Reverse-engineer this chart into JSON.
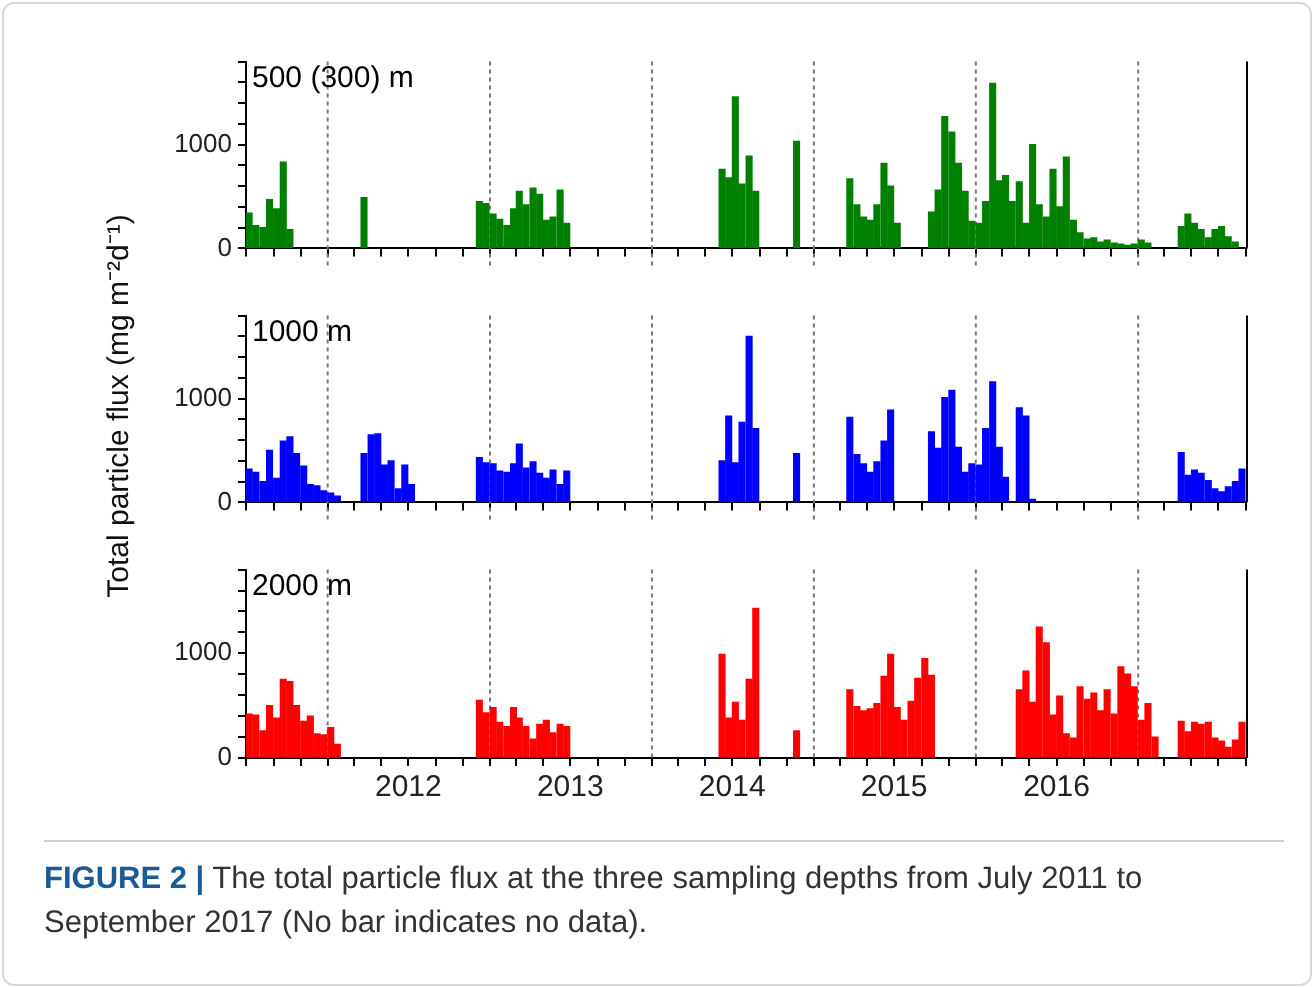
{
  "chart_data": [
    {
      "type": "bar",
      "color": "#008000",
      "legend": false,
      "tick_labels": "y",
      "annotations": [
        "500 (300) m"
      ],
      "x": [
        "2011-07-08",
        "2011-07-23",
        "2011-08-08",
        "2011-08-23",
        "2011-09-08",
        "2011-09-23",
        "2011-10-08",
        "2012-03-23",
        "2012-12-08",
        "2012-12-23",
        "2013-01-08",
        "2013-01-23",
        "2013-02-08",
        "2013-02-23",
        "2013-03-08",
        "2013-03-23",
        "2013-04-08",
        "2013-04-23",
        "2013-05-08",
        "2013-05-23",
        "2013-06-08",
        "2013-06-23",
        "2014-06-08",
        "2014-06-23",
        "2014-07-08",
        "2014-07-23",
        "2014-08-08",
        "2014-08-23",
        "2014-11-23",
        "2015-03-23",
        "2015-04-08",
        "2015-04-23",
        "2015-05-08",
        "2015-05-23",
        "2015-06-08",
        "2015-06-23",
        "2015-07-08",
        "2015-09-23",
        "2015-10-08",
        "2015-10-23",
        "2015-11-08",
        "2015-11-23",
        "2015-12-08",
        "2015-12-23",
        "2016-01-08",
        "2016-01-23",
        "2016-02-08",
        "2016-02-23",
        "2016-03-08",
        "2016-03-23",
        "2016-04-08",
        "2016-04-23",
        "2016-05-08",
        "2016-05-23",
        "2016-06-08",
        "2016-06-23",
        "2016-07-08",
        "2016-07-23",
        "2016-08-08",
        "2016-08-23",
        "2016-09-08",
        "2016-09-23",
        "2016-10-08",
        "2016-10-23",
        "2016-11-08",
        "2016-11-23",
        "2016-12-08",
        "2016-12-23",
        "2017-01-08",
        "2017-01-23",
        "2017-04-08",
        "2017-04-23",
        "2017-05-08",
        "2017-05-23",
        "2017-06-08",
        "2017-06-23",
        "2017-07-08",
        "2017-07-23",
        "2017-08-08"
      ],
      "values": [
        340,
        220,
        200,
        470,
        380,
        830,
        180,
        490,
        450,
        430,
        330,
        280,
        220,
        380,
        550,
        420,
        580,
        520,
        270,
        300,
        560,
        240,
        760,
        680,
        1460,
        620,
        890,
        550,
        1030,
        670,
        420,
        300,
        270,
        420,
        820,
        600,
        240,
        350,
        560,
        1270,
        1120,
        820,
        550,
        260,
        240,
        450,
        1590,
        650,
        700,
        450,
        640,
        240,
        1000,
        420,
        300,
        760,
        400,
        880,
        270,
        150,
        90,
        100,
        60,
        80,
        50,
        40,
        30,
        40,
        80,
        50,
        210,
        330,
        240,
        180,
        100,
        180,
        210,
        110,
        60
      ],
      "xlim": [
        "2011-07-01",
        "2017-09-01"
      ],
      "xticks": [
        {
          "value": "2011-07-01",
          "label": null
        },
        {
          "value": "2011-09-01",
          "label": null
        },
        {
          "value": "2011-11-01",
          "label": null
        },
        {
          "value": "2012-01-01",
          "label": null
        },
        {
          "value": "2012-03-01",
          "label": null
        },
        {
          "value": "2012-05-01",
          "label": null
        },
        {
          "value": "2012-07-01",
          "label": null
        },
        {
          "value": "2012-09-01",
          "label": null
        },
        {
          "value": "2012-11-01",
          "label": null
        },
        {
          "value": "2013-01-01",
          "label": null
        },
        {
          "value": "2013-03-01",
          "label": null
        },
        {
          "value": "2013-05-01",
          "label": null
        },
        {
          "value": "2013-07-01",
          "label": null
        },
        {
          "value": "2013-09-01",
          "label": null
        },
        {
          "value": "2013-11-01",
          "label": null
        },
        {
          "value": "2014-01-01",
          "label": null
        },
        {
          "value": "2014-03-01",
          "label": null
        },
        {
          "value": "2014-05-01",
          "label": null
        },
        {
          "value": "2014-07-01",
          "label": null
        },
        {
          "value": "2014-09-01",
          "label": null
        },
        {
          "value": "2014-11-01",
          "label": null
        },
        {
          "value": "2015-01-01",
          "label": null
        },
        {
          "value": "2015-03-01",
          "label": null
        },
        {
          "value": "2015-05-01",
          "label": null
        },
        {
          "value": "2015-07-01",
          "label": null
        },
        {
          "value": "2015-09-01",
          "label": null
        },
        {
          "value": "2015-11-01",
          "label": null
        },
        {
          "value": "2016-01-01",
          "label": null
        },
        {
          "value": "2016-03-01",
          "label": null
        },
        {
          "value": "2016-05-01",
          "label": null
        },
        {
          "value": "2016-07-01",
          "label": null
        },
        {
          "value": "2016-09-01",
          "label": null
        },
        {
          "value": "2016-11-01",
          "label": null
        },
        {
          "value": "2017-01-01",
          "label": null
        },
        {
          "value": "2017-03-01",
          "label": null
        },
        {
          "value": "2017-05-01",
          "label": null
        },
        {
          "value": "2017-07-01",
          "label": null
        },
        {
          "value": "2017-09-01",
          "label": null
        }
      ],
      "ylim": [
        0,
        1800
      ],
      "yticks": [
        {
          "value": 0,
          "label": "0"
        },
        {
          "value": 200,
          "label": null
        },
        {
          "value": 400,
          "label": null
        },
        {
          "value": 600,
          "label": null
        },
        {
          "value": 800,
          "label": null
        },
        {
          "value": 1000,
          "label": "1000"
        },
        {
          "value": 1200,
          "label": null
        },
        {
          "value": 1400,
          "label": null
        },
        {
          "value": 1600,
          "label": null
        },
        {
          "value": 1800,
          "label": null
        }
      ],
      "ref_lines": [
        {
          "axis": "x",
          "value": "2012-01-01",
          "line_style": "dotted",
          "color": "#777777"
        },
        {
          "axis": "x",
          "value": "2013-01-01",
          "line_style": "dotted",
          "color": "#777777"
        },
        {
          "axis": "x",
          "value": "2014-01-01",
          "line_style": "dotted",
          "color": "#777777"
        },
        {
          "axis": "x",
          "value": "2015-01-01",
          "line_style": "dotted",
          "color": "#777777"
        },
        {
          "axis": "x",
          "value": "2016-01-01",
          "line_style": "dotted",
          "color": "#777777"
        },
        {
          "axis": "x",
          "value": "2017-01-01",
          "line_style": "dotted",
          "color": "#777777"
        }
      ]
    },
    {
      "type": "bar",
      "color": "#0000ff",
      "legend": false,
      "tick_labels": "y",
      "annotations": [
        "1000 m"
      ],
      "ylabel": "Total particle flux (mg m⁻²d⁻¹)",
      "x": [
        "2011-07-08",
        "2011-07-23",
        "2011-08-08",
        "2011-08-23",
        "2011-09-08",
        "2011-09-23",
        "2011-10-08",
        "2011-10-23",
        "2011-11-08",
        "2011-11-23",
        "2011-12-08",
        "2011-12-23",
        "2012-01-08",
        "2012-01-23",
        "2012-03-23",
        "2012-04-08",
        "2012-04-23",
        "2012-05-08",
        "2012-05-23",
        "2012-06-08",
        "2012-06-23",
        "2012-07-08",
        "2012-12-08",
        "2012-12-23",
        "2013-01-08",
        "2013-01-23",
        "2013-02-08",
        "2013-02-23",
        "2013-03-08",
        "2013-03-23",
        "2013-04-08",
        "2013-04-23",
        "2013-05-08",
        "2013-05-23",
        "2013-06-08",
        "2013-06-23",
        "2014-06-08",
        "2014-06-23",
        "2014-07-08",
        "2014-07-23",
        "2014-08-08",
        "2014-08-23",
        "2014-11-23",
        "2015-03-23",
        "2015-04-08",
        "2015-04-23",
        "2015-05-08",
        "2015-05-23",
        "2015-06-08",
        "2015-06-23",
        "2015-09-23",
        "2015-10-08",
        "2015-10-23",
        "2015-11-08",
        "2015-11-23",
        "2015-12-08",
        "2015-12-23",
        "2016-01-08",
        "2016-01-23",
        "2016-02-08",
        "2016-02-23",
        "2016-03-08",
        "2016-04-08",
        "2016-04-23",
        "2016-05-08",
        "2017-04-08",
        "2017-04-23",
        "2017-05-08",
        "2017-05-23",
        "2017-06-08",
        "2017-06-23",
        "2017-07-08",
        "2017-07-23",
        "2017-08-08",
        "2017-08-23"
      ],
      "values": [
        320,
        290,
        200,
        500,
        230,
        590,
        630,
        470,
        350,
        170,
        160,
        110,
        90,
        60,
        470,
        650,
        660,
        360,
        400,
        130,
        360,
        170,
        430,
        380,
        370,
        300,
        290,
        370,
        560,
        330,
        390,
        280,
        230,
        310,
        170,
        300,
        400,
        830,
        380,
        770,
        1600,
        710,
        470,
        820,
        460,
        370,
        290,
        390,
        590,
        890,
        680,
        520,
        1010,
        1080,
        530,
        290,
        370,
        360,
        710,
        1160,
        530,
        240,
        910,
        830,
        30,
        480,
        260,
        310,
        280,
        210,
        130,
        100,
        150,
        200,
        320
      ],
      "xlim": [
        "2011-07-01",
        "2017-09-01"
      ],
      "xticks": [
        {
          "value": "2011-07-01",
          "label": null
        },
        {
          "value": "2011-09-01",
          "label": null
        },
        {
          "value": "2011-11-01",
          "label": null
        },
        {
          "value": "2012-01-01",
          "label": null
        },
        {
          "value": "2012-03-01",
          "label": null
        },
        {
          "value": "2012-05-01",
          "label": null
        },
        {
          "value": "2012-07-01",
          "label": null
        },
        {
          "value": "2012-09-01",
          "label": null
        },
        {
          "value": "2012-11-01",
          "label": null
        },
        {
          "value": "2013-01-01",
          "label": null
        },
        {
          "value": "2013-03-01",
          "label": null
        },
        {
          "value": "2013-05-01",
          "label": null
        },
        {
          "value": "2013-07-01",
          "label": null
        },
        {
          "value": "2013-09-01",
          "label": null
        },
        {
          "value": "2013-11-01",
          "label": null
        },
        {
          "value": "2014-01-01",
          "label": null
        },
        {
          "value": "2014-03-01",
          "label": null
        },
        {
          "value": "2014-05-01",
          "label": null
        },
        {
          "value": "2014-07-01",
          "label": null
        },
        {
          "value": "2014-09-01",
          "label": null
        },
        {
          "value": "2014-11-01",
          "label": null
        },
        {
          "value": "2015-01-01",
          "label": null
        },
        {
          "value": "2015-03-01",
          "label": null
        },
        {
          "value": "2015-05-01",
          "label": null
        },
        {
          "value": "2015-07-01",
          "label": null
        },
        {
          "value": "2015-09-01",
          "label": null
        },
        {
          "value": "2015-11-01",
          "label": null
        },
        {
          "value": "2016-01-01",
          "label": null
        },
        {
          "value": "2016-03-01",
          "label": null
        },
        {
          "value": "2016-05-01",
          "label": null
        },
        {
          "value": "2016-07-01",
          "label": null
        },
        {
          "value": "2016-09-01",
          "label": null
        },
        {
          "value": "2016-11-01",
          "label": null
        },
        {
          "value": "2017-01-01",
          "label": null
        },
        {
          "value": "2017-03-01",
          "label": null
        },
        {
          "value": "2017-05-01",
          "label": null
        },
        {
          "value": "2017-07-01",
          "label": null
        },
        {
          "value": "2017-09-01",
          "label": null
        }
      ],
      "ylim": [
        0,
        1800
      ],
      "yticks": [
        {
          "value": 0,
          "label": "0"
        },
        {
          "value": 200,
          "label": null
        },
        {
          "value": 400,
          "label": null
        },
        {
          "value": 600,
          "label": null
        },
        {
          "value": 800,
          "label": null
        },
        {
          "value": 1000,
          "label": "1000"
        },
        {
          "value": 1200,
          "label": null
        },
        {
          "value": 1400,
          "label": null
        },
        {
          "value": 1600,
          "label": null
        },
        {
          "value": 1800,
          "label": null
        }
      ],
      "ref_lines": [
        {
          "axis": "x",
          "value": "2012-01-01",
          "line_style": "dotted",
          "color": "#777777"
        },
        {
          "axis": "x",
          "value": "2013-01-01",
          "line_style": "dotted",
          "color": "#777777"
        },
        {
          "axis": "x",
          "value": "2014-01-01",
          "line_style": "dotted",
          "color": "#777777"
        },
        {
          "axis": "x",
          "value": "2015-01-01",
          "line_style": "dotted",
          "color": "#777777"
        },
        {
          "axis": "x",
          "value": "2016-01-01",
          "line_style": "dotted",
          "color": "#777777"
        },
        {
          "axis": "x",
          "value": "2017-01-01",
          "line_style": "dotted",
          "color": "#777777"
        }
      ]
    },
    {
      "type": "bar",
      "color": "#ff0000",
      "legend": false,
      "annotations": [
        "2000 m",
        "FIGURE 2 |",
        "The total particle flux at the three sampling depths from July 2011 to September 2017 (No bar indicates no data)."
      ],
      "x": [
        "2011-07-08",
        "2011-07-23",
        "2011-08-08",
        "2011-08-23",
        "2011-09-08",
        "2011-09-23",
        "2011-10-08",
        "2011-10-23",
        "2011-11-08",
        "2011-11-23",
        "2011-12-08",
        "2011-12-23",
        "2012-01-08",
        "2012-01-23",
        "2012-12-08",
        "2012-12-23",
        "2013-01-08",
        "2013-01-23",
        "2013-02-08",
        "2013-02-23",
        "2013-03-08",
        "2013-03-23",
        "2013-04-08",
        "2013-04-23",
        "2013-05-08",
        "2013-05-23",
        "2013-06-08",
        "2013-06-23",
        "2014-06-08",
        "2014-06-23",
        "2014-07-08",
        "2014-07-23",
        "2014-08-08",
        "2014-08-23",
        "2014-11-23",
        "2015-03-23",
        "2015-04-08",
        "2015-04-23",
        "2015-05-08",
        "2015-05-23",
        "2015-06-08",
        "2015-06-23",
        "2015-07-08",
        "2015-07-23",
        "2015-08-08",
        "2015-08-23",
        "2015-09-08",
        "2015-09-23",
        "2016-04-08",
        "2016-04-23",
        "2016-05-08",
        "2016-05-23",
        "2016-06-08",
        "2016-06-23",
        "2016-07-08",
        "2016-07-23",
        "2016-08-08",
        "2016-08-23",
        "2016-09-08",
        "2016-09-23",
        "2016-10-08",
        "2016-10-23",
        "2016-11-08",
        "2016-11-23",
        "2016-12-08",
        "2016-12-23",
        "2017-01-08",
        "2017-01-23",
        "2017-02-08",
        "2017-04-08",
        "2017-04-23",
        "2017-05-08",
        "2017-05-23",
        "2017-06-08",
        "2017-06-23",
        "2017-07-08",
        "2017-07-23",
        "2017-08-08",
        "2017-08-23"
      ],
      "values": [
        420,
        410,
        260,
        500,
        380,
        750,
        730,
        500,
        350,
        400,
        230,
        220,
        290,
        130,
        550,
        430,
        480,
        340,
        300,
        480,
        380,
        300,
        180,
        320,
        360,
        240,
        320,
        300,
        990,
        380,
        530,
        360,
        750,
        1430,
        260,
        650,
        490,
        450,
        470,
        520,
        780,
        990,
        480,
        360,
        540,
        760,
        950,
        790,
        650,
        830,
        530,
        1250,
        1100,
        410,
        590,
        230,
        190,
        680,
        560,
        620,
        450,
        650,
        420,
        870,
        800,
        680,
        360,
        520,
        200,
        350,
        250,
        340,
        320,
        340,
        190,
        160,
        100,
        170,
        340
      ],
      "xlim": [
        "2011-07-01",
        "2017-09-01"
      ],
      "xticks": [
        {
          "value": "2011-07-01",
          "label": null
        },
        {
          "value": "2011-09-01",
          "label": null
        },
        {
          "value": "2011-11-01",
          "label": null
        },
        {
          "value": "2012-01-01",
          "label": null
        },
        {
          "value": "2012-03-01",
          "label": null
        },
        {
          "value": "2012-05-01",
          "label": null
        },
        {
          "value": "2012-07-01",
          "label": "2012"
        },
        {
          "value": "2012-09-01",
          "label": null
        },
        {
          "value": "2012-11-01",
          "label": null
        },
        {
          "value": "2013-01-01",
          "label": null
        },
        {
          "value": "2013-03-01",
          "label": null
        },
        {
          "value": "2013-05-01",
          "label": null
        },
        {
          "value": "2013-07-01",
          "label": "2013"
        },
        {
          "value": "2013-09-01",
          "label": null
        },
        {
          "value": "2013-11-01",
          "label": null
        },
        {
          "value": "2014-01-01",
          "label": null
        },
        {
          "value": "2014-03-01",
          "label": null
        },
        {
          "value": "2014-05-01",
          "label": null
        },
        {
          "value": "2014-07-01",
          "label": "2014"
        },
        {
          "value": "2014-09-01",
          "label": null
        },
        {
          "value": "2014-11-01",
          "label": null
        },
        {
          "value": "2015-01-01",
          "label": null
        },
        {
          "value": "2015-03-01",
          "label": null
        },
        {
          "value": "2015-05-01",
          "label": null
        },
        {
          "value": "2015-07-01",
          "label": "2015"
        },
        {
          "value": "2015-09-01",
          "label": null
        },
        {
          "value": "2015-11-01",
          "label": null
        },
        {
          "value": "2016-01-01",
          "label": null
        },
        {
          "value": "2016-03-01",
          "label": null
        },
        {
          "value": "2016-05-01",
          "label": null
        },
        {
          "value": "2016-07-01",
          "label": "2016"
        },
        {
          "value": "2016-09-01",
          "label": null
        },
        {
          "value": "2016-11-01",
          "label": null
        },
        {
          "value": "2017-01-01",
          "label": null
        },
        {
          "value": "2017-03-01",
          "label": null
        },
        {
          "value": "2017-05-01",
          "label": null
        },
        {
          "value": "2017-07-01",
          "label": null
        },
        {
          "value": "2017-09-01",
          "label": null
        }
      ],
      "ylim": [
        0,
        1800
      ],
      "yticks": [
        {
          "value": 0,
          "label": "0"
        },
        {
          "value": 200,
          "label": null
        },
        {
          "value": 400,
          "label": null
        },
        {
          "value": 600,
          "label": null
        },
        {
          "value": 800,
          "label": null
        },
        {
          "value": 1000,
          "label": "1000"
        },
        {
          "value": 1200,
          "label": null
        },
        {
          "value": 1400,
          "label": null
        },
        {
          "value": 1600,
          "label": null
        },
        {
          "value": 1800,
          "label": null
        }
      ],
      "ref_lines": [
        {
          "axis": "x",
          "value": "2012-01-01",
          "line_style": "dotted",
          "color": "#777777"
        },
        {
          "axis": "x",
          "value": "2013-01-01",
          "line_style": "dotted",
          "color": "#777777"
        },
        {
          "axis": "x",
          "value": "2014-01-01",
          "line_style": "dotted",
          "color": "#777777"
        },
        {
          "axis": "x",
          "value": "2015-01-01",
          "line_style": "dotted",
          "color": "#777777"
        },
        {
          "axis": "x",
          "value": "2016-01-01",
          "line_style": "dotted",
          "color": "#777777"
        },
        {
          "axis": "x",
          "value": "2017-01-01",
          "line_style": "dotted",
          "color": "#777777"
        }
      ]
    }
  ]
}
